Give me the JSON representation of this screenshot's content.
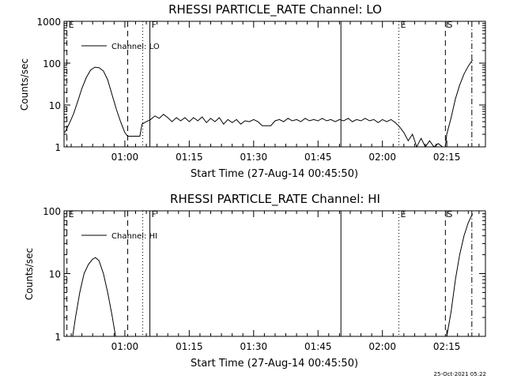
{
  "footer": {
    "timestamp": "25-Oct-2021 05:22"
  },
  "chart_data": [
    {
      "type": "line",
      "title": "RHESSI PARTICLE_RATE Channel: LO",
      "xlabel": "Start Time (27-Aug-14 00:45:50)",
      "ylabel": "Counts/sec",
      "y_scale": "log",
      "ylim": [
        1,
        1000
      ],
      "xlim": [
        "00:45:50",
        "02:24:00"
      ],
      "y_tick_labels": [
        "1",
        "10",
        "100",
        "1000"
      ],
      "x_tick_labels": [
        "01:00",
        "01:15",
        "01:30",
        "01:45",
        "02:00",
        "02:15"
      ],
      "legend": {
        "label": "Channel: LO",
        "placement": "top-left"
      },
      "markers": [
        {
          "letter": "E",
          "time": "00:46:30",
          "style": "dashed"
        },
        {
          "letter": "",
          "time": "01:00:40",
          "style": "dashed"
        },
        {
          "letter": "",
          "time": "01:04:10",
          "style": "dotted"
        },
        {
          "letter": "F",
          "time": "01:05:50",
          "style": "solid"
        },
        {
          "letter": "",
          "time": "01:50:20",
          "style": "solid"
        },
        {
          "letter": "E",
          "time": "02:03:50",
          "style": "dotted"
        },
        {
          "letter": "S",
          "time": "02:14:40",
          "style": "dashed"
        },
        {
          "letter": "",
          "time": "02:20:50",
          "style": "dashdot"
        }
      ],
      "series": [
        {
          "values": [
            [
              "00:46:00",
              2.2
            ],
            [
              "00:47:00",
              3.5
            ],
            [
              "00:48:00",
              6
            ],
            [
              "00:49:00",
              12
            ],
            [
              "00:50:00",
              25
            ],
            [
              "00:51:00",
              45
            ],
            [
              "00:52:00",
              68
            ],
            [
              "00:53:00",
              80
            ],
            [
              "00:54:00",
              78
            ],
            [
              "00:55:00",
              65
            ],
            [
              "00:56:00",
              40
            ],
            [
              "00:57:00",
              18
            ],
            [
              "00:58:00",
              8
            ],
            [
              "00:59:00",
              4
            ],
            [
              "01:00:00",
              2.2
            ],
            [
              "01:00:40",
              1.8
            ],
            [
              "01:03:30",
              1.8
            ],
            [
              "01:04:00",
              3.5
            ],
            [
              "01:05:00",
              4
            ],
            [
              "01:06:00",
              4.5
            ],
            [
              "01:07:00",
              5.5
            ],
            [
              "01:08:00",
              4.8
            ],
            [
              "01:09:00",
              6
            ],
            [
              "01:10:00",
              5
            ],
            [
              "01:11:00",
              4
            ],
            [
              "01:12:00",
              5
            ],
            [
              "01:13:00",
              4.2
            ],
            [
              "01:14:00",
              5
            ],
            [
              "01:15:00",
              4
            ],
            [
              "01:16:00",
              5
            ],
            [
              "01:17:00",
              4.2
            ],
            [
              "01:18:00",
              5.2
            ],
            [
              "01:19:00",
              3.8
            ],
            [
              "01:20:00",
              4.8
            ],
            [
              "01:21:00",
              4
            ],
            [
              "01:22:00",
              5
            ],
            [
              "01:23:00",
              3.5
            ],
            [
              "01:24:00",
              4.5
            ],
            [
              "01:25:00",
              3.8
            ],
            [
              "01:26:00",
              4.5
            ],
            [
              "01:27:00",
              3.5
            ],
            [
              "01:28:00",
              4.2
            ],
            [
              "01:29:00",
              4
            ],
            [
              "01:30:00",
              4.5
            ],
            [
              "01:31:00",
              4
            ],
            [
              "01:32:00",
              3.2
            ],
            [
              "01:33:00",
              3.2
            ],
            [
              "01:34:00",
              3.2
            ],
            [
              "01:35:00",
              4.2
            ],
            [
              "01:36:00",
              4.5
            ],
            [
              "01:37:00",
              4
            ],
            [
              "01:38:00",
              4.8
            ],
            [
              "01:39:00",
              4.2
            ],
            [
              "01:40:00",
              4.5
            ],
            [
              "01:41:00",
              4
            ],
            [
              "01:42:00",
              4.8
            ],
            [
              "01:43:00",
              4.2
            ],
            [
              "01:44:00",
              4.5
            ],
            [
              "01:45:00",
              4.2
            ],
            [
              "01:46:00",
              4.8
            ],
            [
              "01:47:00",
              4.2
            ],
            [
              "01:48:00",
              4.5
            ],
            [
              "01:49:00",
              4
            ],
            [
              "01:50:00",
              4.5
            ],
            [
              "01:51:00",
              4.2
            ],
            [
              "01:52:00",
              4.8
            ],
            [
              "01:53:00",
              4
            ],
            [
              "01:54:00",
              4.5
            ],
            [
              "01:55:00",
              4.2
            ],
            [
              "01:56:00",
              4.8
            ],
            [
              "01:57:00",
              4.2
            ],
            [
              "01:58:00",
              4.5
            ],
            [
              "01:59:00",
              3.8
            ],
            [
              "02:00:00",
              4.5
            ],
            [
              "02:01:00",
              4
            ],
            [
              "02:02:00",
              4.5
            ],
            [
              "02:03:00",
              3.8
            ],
            [
              "02:04:00",
              3
            ],
            [
              "02:05:00",
              2.2
            ],
            [
              "02:06:00",
              1.4
            ],
            [
              "02:07:00",
              2
            ],
            [
              "02:08:00",
              1
            ],
            [
              "02:09:00",
              1.6
            ],
            [
              "02:10:00",
              1
            ],
            [
              "02:11:00",
              1.4
            ],
            [
              "02:12:00",
              1
            ],
            [
              "02:13:00",
              1.2
            ],
            [
              "02:14:00",
              1
            ],
            [
              "02:14:40",
              1
            ],
            [
              "02:15:00",
              2
            ],
            [
              "02:16:00",
              5
            ],
            [
              "02:17:00",
              14
            ],
            [
              "02:18:00",
              30
            ],
            [
              "02:19:00",
              55
            ],
            [
              "02:20:00",
              85
            ],
            [
              "02:21:00",
              120
            ]
          ]
        }
      ]
    },
    {
      "type": "line",
      "title": "RHESSI PARTICLE_RATE Channel: HI",
      "xlabel": "Start Time (27-Aug-14 00:45:50)",
      "ylabel": "Counts/sec",
      "y_scale": "log",
      "ylim": [
        1,
        100
      ],
      "xlim": [
        "00:45:50",
        "02:24:00"
      ],
      "y_tick_labels": [
        "1",
        "10",
        "100"
      ],
      "x_tick_labels": [
        "01:00",
        "01:15",
        "01:30",
        "01:45",
        "02:00",
        "02:15"
      ],
      "legend": {
        "label": "Channel: HI",
        "placement": "top-left"
      },
      "markers": [
        {
          "letter": "E",
          "time": "00:46:30",
          "style": "dashed"
        },
        {
          "letter": "",
          "time": "01:00:40",
          "style": "dashed"
        },
        {
          "letter": "",
          "time": "01:04:10",
          "style": "dotted"
        },
        {
          "letter": "F",
          "time": "01:05:50",
          "style": "solid"
        },
        {
          "letter": "",
          "time": "01:50:20",
          "style": "solid"
        },
        {
          "letter": "E",
          "time": "02:03:50",
          "style": "dotted"
        },
        {
          "letter": "S",
          "time": "02:14:40",
          "style": "dashed"
        },
        {
          "letter": "",
          "time": "02:20:50",
          "style": "dashdot"
        }
      ],
      "series": [
        {
          "values": [
            [
              "00:47:50",
              1
            ],
            [
              "00:48:30",
              2
            ],
            [
              "00:49:30",
              5
            ],
            [
              "00:50:30",
              10
            ],
            [
              "00:51:30",
              14
            ],
            [
              "00:52:30",
              17
            ],
            [
              "00:53:10",
              18
            ],
            [
              "00:54:00",
              16
            ],
            [
              "00:55:00",
              10
            ],
            [
              "00:56:00",
              5
            ],
            [
              "00:57:00",
              2.2
            ],
            [
              "00:57:50",
              1
            ]
          ]
        },
        {
          "values": [
            [
              "02:15:00",
              1
            ],
            [
              "02:16:00",
              2.5
            ],
            [
              "02:17:00",
              8
            ],
            [
              "02:18:00",
              20
            ],
            [
              "02:19:00",
              40
            ],
            [
              "02:20:00",
              65
            ],
            [
              "02:21:00",
              90
            ]
          ]
        }
      ]
    }
  ]
}
